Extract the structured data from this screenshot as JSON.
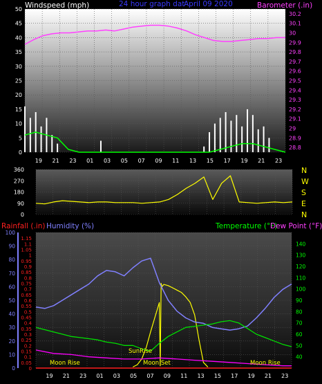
{
  "header": {
    "windspeed_label": "Windspeed (mph)",
    "graph_title": "24 hour graph dat",
    "graph_date": "April 09 2020",
    "barometer_label": "Barometer (.in)"
  },
  "middle": {
    "compass_letters": [
      "N",
      "W",
      "S",
      "E",
      "N"
    ]
  },
  "bottom": {
    "rainfall_label": "Rainfall (.in)",
    "humidity_label": "Humidity (%)",
    "temperature_label": "Temperature (°F)",
    "dewpoint_label": "Dew Point (°F)",
    "sunrise_label": "SunRise",
    "moonset_label": "Moon Set",
    "moonrise_labels": [
      "Moon Rise",
      "Moon Rise"
    ]
  },
  "colors": {
    "wind": "#ffffff",
    "wind_avg": "#00ff00",
    "barometer": "#ff40ff",
    "direction": "#ffff00",
    "rainfall": "#ff2020",
    "humidity": "#8080ff",
    "temperature": "#00e000",
    "dewpoint": "#ff00ff",
    "solar": "#ffff00"
  },
  "chart_data": [
    {
      "type": "line",
      "title": "24 hour graph dat April 09 2020",
      "x_tick_labels": [
        "19",
        "21",
        "23",
        "01",
        "03",
        "05",
        "07",
        "09",
        "11",
        "13",
        "15",
        "17",
        "19",
        "21",
        "23"
      ],
      "y_left": {
        "label": "Windspeed (mph)",
        "ticks": [
          0,
          5,
          10,
          15,
          20,
          25,
          30,
          35,
          40,
          45,
          50
        ],
        "ylim": [
          0,
          50
        ]
      },
      "y_right": {
        "label": "Barometer (.in)",
        "ticks": [
          28.8,
          28.9,
          29.0,
          29.1,
          29.2,
          29.3,
          29.4,
          29.5,
          29.6,
          29.7,
          29.8,
          29.9,
          30.0,
          30.1,
          30.2
        ],
        "tick_labels": [
          "28.8",
          "28.9",
          "29",
          "29.1",
          "29.2",
          "29.3",
          "29.4",
          "29.5",
          "29.6",
          "29.7",
          "29.8",
          "29.9",
          "30",
          "30.1",
          "30.2"
        ],
        "ylim": [
          28.75,
          30.25
        ]
      },
      "grid": true,
      "series": [
        {
          "name": "Windspeed (mph)",
          "axis": "left",
          "x": [
            0,
            0.5,
            1,
            1.5,
            2,
            2.5,
            3,
            3.5,
            4,
            4.5,
            5,
            5.5,
            6,
            6.5,
            7,
            7.5,
            8,
            8.5,
            9,
            9.5,
            10,
            10.5,
            11,
            11.5,
            12,
            12.5,
            13,
            13.5,
            14,
            14.5,
            15,
            15.5,
            16,
            16.5,
            17,
            17.5,
            18,
            18.5,
            19,
            19.5,
            20,
            20.5,
            21,
            21.5,
            22,
            22.5,
            23,
            23.5,
            24
          ],
          "y": [
            16,
            12,
            14,
            9,
            12,
            6,
            3,
            0,
            0,
            0,
            0,
            0,
            0,
            0,
            4,
            0,
            0,
            0,
            0,
            0,
            0,
            0,
            0,
            0,
            0,
            0,
            0,
            0,
            0,
            0,
            0,
            0,
            0,
            2,
            7,
            10,
            12,
            14,
            11,
            13,
            9,
            15,
            13,
            8,
            9,
            5,
            0,
            0,
            0
          ]
        },
        {
          "name": "Wind Average",
          "axis": "left",
          "x": [
            0,
            1,
            2,
            3,
            4,
            5,
            6,
            7,
            8,
            9,
            10,
            11,
            12,
            13,
            14,
            15,
            16,
            17,
            18,
            19,
            20,
            21,
            22,
            23,
            24
          ],
          "y": [
            6,
            7,
            6,
            5,
            1,
            0,
            0,
            0,
            0,
            0,
            0,
            0,
            0,
            0,
            0,
            0,
            0,
            0,
            1,
            2,
            3,
            3,
            2,
            1,
            0
          ]
        },
        {
          "name": "Barometer (.in)",
          "axis": "right",
          "x": [
            0,
            1,
            2,
            3,
            4,
            5,
            6,
            7,
            8,
            9,
            10,
            11,
            12,
            13,
            14,
            15,
            16,
            17,
            18,
            19,
            20,
            21,
            22,
            23,
            24,
            25,
            26,
            27,
            28,
            29
          ],
          "y": [
            29.88,
            29.93,
            29.97,
            29.99,
            30.0,
            30.0,
            30.01,
            30.02,
            30.02,
            30.03,
            30.02,
            30.04,
            30.06,
            30.07,
            30.08,
            30.08,
            30.07,
            30.05,
            30.02,
            29.98,
            29.95,
            29.92,
            29.91,
            29.91,
            29.92,
            29.93,
            29.94,
            29.94,
            29.95,
            29.95
          ]
        }
      ]
    },
    {
      "type": "line",
      "title": "",
      "x_tick_labels": [
        "19",
        "21",
        "23",
        "01",
        "03",
        "05",
        "07",
        "09",
        "11",
        "13",
        "15",
        "17",
        "19",
        "21",
        "23"
      ],
      "y_left": {
        "label": "",
        "ticks": [
          0,
          90,
          180,
          270,
          360
        ],
        "ylim": [
          0,
          360
        ]
      },
      "y_right": {
        "label": "",
        "tick_labels": [
          "N",
          "W",
          "S",
          "E",
          "N"
        ]
      },
      "grid": true,
      "series": [
        {
          "name": "Wind direction",
          "axis": "left",
          "x": [
            0,
            1,
            2,
            3,
            4,
            5,
            6,
            7,
            8,
            9,
            10,
            11,
            12,
            13,
            14,
            15,
            16,
            17,
            18,
            19,
            20,
            21,
            22,
            23,
            24,
            25,
            26,
            27,
            28,
            29
          ],
          "y": [
            90,
            85,
            100,
            110,
            105,
            100,
            95,
            100,
            100,
            95,
            95,
            95,
            90,
            95,
            100,
            120,
            160,
            210,
            250,
            300,
            120,
            250,
            310,
            100,
            95,
            90,
            95,
            100,
            95,
            100
          ]
        }
      ]
    },
    {
      "type": "line",
      "title": "",
      "x_tick_labels": [
        "19",
        "21",
        "23",
        "01",
        "03",
        "05",
        "07",
        "09",
        "11",
        "13",
        "15",
        "17",
        "19",
        "21",
        "23"
      ],
      "y_rainfall": {
        "label": "Rainfall (.in)",
        "ticks": [
          0,
          0.05,
          0.1,
          0.15,
          0.2,
          0.25,
          0.3,
          0.35,
          0.4,
          0.45,
          0.5,
          0.55,
          0.6,
          0.65,
          0.7,
          0.75,
          0.8,
          0.85,
          0.9,
          0.95,
          1,
          1.05,
          1.1,
          1.15
        ],
        "tick_labels": [
          "0",
          "0.05",
          "0.1",
          "0.15",
          "0.2",
          "0.25",
          "0.3",
          "0.35",
          "0.4",
          "0.45",
          "0.5",
          "0.55",
          "0.6",
          "0.65",
          "0.7",
          "0.75",
          "0.8",
          "0.85",
          "0.9",
          "0.95",
          "1",
          "1.05",
          "1.1",
          "1.15"
        ],
        "ylim": [
          0,
          1.2
        ]
      },
      "y_humidity": {
        "label": "Humidity (%)",
        "ticks": [
          0,
          10,
          20,
          30,
          40,
          50,
          60,
          70,
          80,
          90,
          100
        ],
        "ylim": [
          0,
          100
        ]
      },
      "y_temperature": {
        "label": "Temperature (°F)",
        "ticks": [
          40,
          50,
          60,
          70,
          80,
          90,
          100,
          110,
          120,
          130,
          140
        ],
        "ylim": [
          30,
          150
        ]
      },
      "grid": true,
      "series": [
        {
          "name": "Rainfall (.in)",
          "axis": "rainfall",
          "x": [
            0,
            24
          ],
          "y": [
            0,
            0
          ]
        },
        {
          "name": "Humidity (%)",
          "axis": "humidity",
          "x": [
            0,
            1,
            2,
            3,
            4,
            5,
            6,
            7,
            8,
            9,
            10,
            11,
            12,
            13,
            14,
            15,
            16,
            17,
            18,
            19,
            20,
            21,
            22,
            23,
            24,
            25,
            26,
            27,
            28,
            29
          ],
          "y": [
            45,
            44,
            46,
            50,
            54,
            58,
            62,
            68,
            72,
            71,
            68,
            74,
            79,
            81,
            63,
            50,
            42,
            37,
            34,
            33,
            30,
            29,
            28,
            29,
            31,
            37,
            44,
            52,
            58,
            62
          ]
        },
        {
          "name": "Temperature (°F)",
          "axis": "temperature",
          "x": [
            0,
            1,
            2,
            3,
            4,
            5,
            6,
            7,
            8,
            9,
            10,
            11,
            12,
            13,
            14,
            15,
            16,
            17,
            18,
            19,
            20,
            21,
            22,
            23,
            24,
            25,
            26,
            27,
            28,
            29
          ],
          "y": [
            66,
            64,
            62,
            60,
            58,
            57,
            56,
            55,
            53,
            52,
            50,
            50,
            47,
            45,
            52,
            58,
            62,
            66,
            67,
            68,
            69,
            71,
            72,
            70,
            65,
            60,
            57,
            54,
            51,
            49
          ]
        },
        {
          "name": "Dew Point (°F)",
          "axis": "temperature",
          "x": [
            0,
            2,
            4,
            6,
            8,
            10,
            12,
            14,
            16,
            18,
            20,
            22,
            24,
            26,
            28,
            29
          ],
          "y": [
            46,
            43,
            42,
            40,
            39,
            38,
            38,
            39,
            38,
            37,
            36,
            35,
            34,
            33,
            32,
            32
          ]
        },
        {
          "name": "Solar",
          "axis": "rainfall",
          "x": [
            11.0,
            11.5,
            12.0,
            12.5,
            13.0,
            13.5,
            14.0,
            14.1,
            14.2,
            14.3,
            14.5,
            15.0,
            15.5,
            16.0,
            16.5,
            17.0,
            17.5,
            18.0,
            18.5,
            19.0,
            19.5
          ],
          "y": [
            0.01,
            0.03,
            0.08,
            0.18,
            0.32,
            0.45,
            0.58,
            0.02,
            0.75,
            0.72,
            0.74,
            0.73,
            0.71,
            0.69,
            0.67,
            0.63,
            0.58,
            0.47,
            0.25,
            0.05,
            0.01
          ]
        }
      ],
      "annotations": [
        "SunRise",
        "Moon Set",
        "Moon Rise",
        "Moon Rise"
      ]
    }
  ]
}
